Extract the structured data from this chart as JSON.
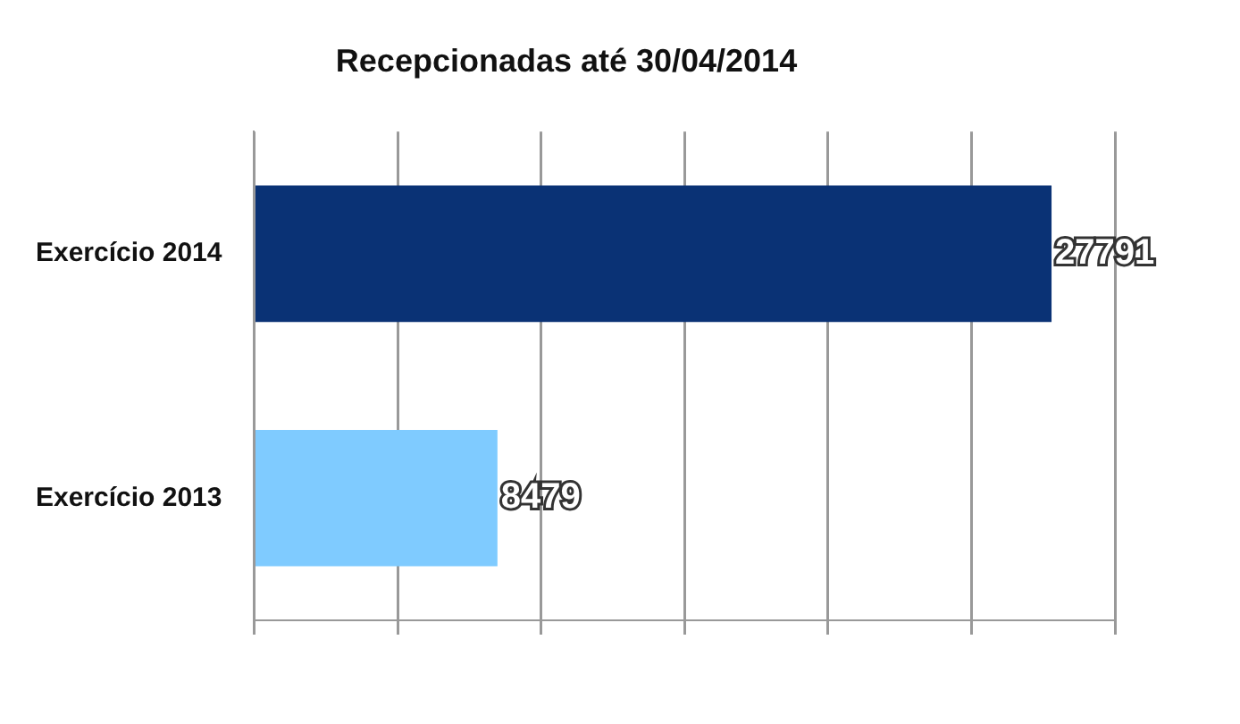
{
  "chart_data": {
    "type": "bar",
    "orientation": "horizontal",
    "title": "Recepcionadas até 30/04/2014",
    "categories": [
      "Exercício 2014",
      "Exercício 2013"
    ],
    "values": [
      27791,
      8479
    ],
    "colors": [
      "#0a3275",
      "#7fcbff"
    ],
    "xlim": [
      0,
      30000
    ],
    "xticks": [
      {
        "value": 0,
        "label": null
      },
      {
        "value": 5000,
        "label": null
      },
      {
        "value": 10000,
        "label": null
      },
      {
        "value": 15000,
        "label": null
      },
      {
        "value": 20000,
        "label": null
      },
      {
        "value": 25000,
        "label": null
      },
      {
        "value": 30000,
        "label": null
      }
    ],
    "tick_labels": "y",
    "grid": "x",
    "data_labels": true
  }
}
